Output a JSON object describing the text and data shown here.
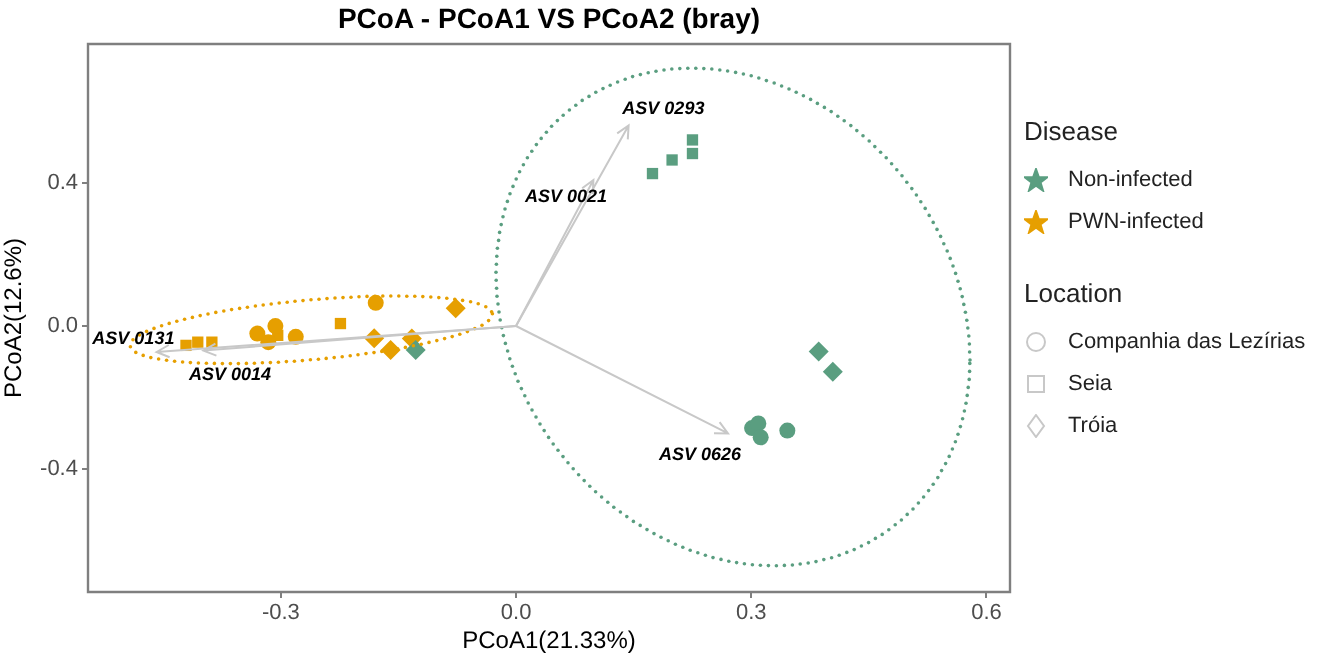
{
  "chart_data": {
    "type": "scatter",
    "title": "PCoA - PCoA1 VS PCoA2 (bray)",
    "xlabel": "PCoA1(21.33%)",
    "ylabel": "PCoA2(12.6%)",
    "legend_title": "Disease",
    "legend": "right",
    "grid": false,
    "xlim": [
      -0.546,
      0.63
    ],
    "ylim": [
      -0.743,
      0.788
    ],
    "xticks": [
      {
        "value": -0.3,
        "label": "-0.3"
      },
      {
        "value": 0,
        "label": "0.0"
      },
      {
        "value": 0.3,
        "label": "0.3"
      },
      {
        "value": 0.6,
        "label": "0.6"
      }
    ],
    "yticks": [
      {
        "value": -0.4,
        "label": "-0.4"
      },
      {
        "value": 0,
        "label": "0.0"
      },
      {
        "value": 0.4,
        "label": "0.4"
      }
    ],
    "series": [
      {
        "name": "Non-infected",
        "color": "#5a9e80",
        "marker": "circle",
        "x": [
          0.301,
          0.309,
          0.312,
          0.346
        ],
        "values": [
          -0.285,
          -0.272,
          -0.311,
          -0.292
        ]
      },
      {
        "color": "#5a9e80",
        "marker": "square",
        "x": [
          0.174,
          0.199,
          0.225,
          0.225
        ],
        "values": [
          0.426,
          0.464,
          0.52,
          0.482
        ]
      },
      {
        "color": "#5a9e80",
        "marker": "diamond",
        "x": [
          -0.128,
          0.386,
          0.404
        ],
        "values": [
          -0.067,
          -0.071,
          -0.128
        ]
      },
      {
        "name": "PWN-infected",
        "color": "#e69f00",
        "marker": "circle",
        "x": [
          -0.33,
          -0.307,
          -0.316,
          -0.281,
          -0.179
        ],
        "values": [
          -0.021,
          0.0,
          -0.045,
          -0.03,
          0.065
        ]
      },
      {
        "color": "#e69f00",
        "marker": "square",
        "x": [
          -0.421,
          -0.406,
          -0.388,
          -0.224,
          -0.304
        ],
        "values": [
          -0.054,
          -0.045,
          -0.045,
          0.007,
          -0.026
        ]
      },
      {
        "color": "#e69f00",
        "marker": "diamond",
        "x": [
          -0.077,
          -0.181,
          -0.16,
          -0.133
        ],
        "values": [
          0.05,
          -0.034,
          -0.067,
          -0.035
        ]
      }
    ],
    "annotations": [
      "ASV 0293",
      "ASV 0021",
      "ASV 0626",
      "ASV 0131",
      "ASV 0014",
      "Location",
      "Companhia das Lezírias",
      "Seia",
      "Tróia"
    ]
  }
}
